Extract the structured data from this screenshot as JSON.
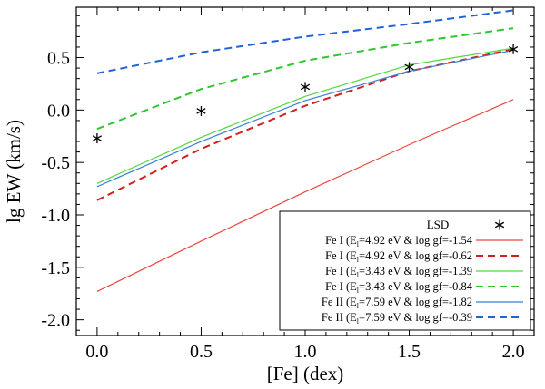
{
  "chart_data": {
    "type": "line",
    "title": "",
    "xlabel": "[Fe] (dex)",
    "ylabel": "lg EW (km/s)",
    "xlim": [
      -0.1,
      2.1
    ],
    "ylim": [
      -2.15,
      0.98
    ],
    "x_ticks": [
      0.0,
      0.5,
      1.0,
      1.5,
      2.0
    ],
    "x_tick_labels": [
      "0.0",
      "0.5",
      "1.0",
      "1.5",
      "2.0"
    ],
    "y_ticks": [
      -2.0,
      -1.5,
      -1.0,
      -0.5,
      0.0,
      0.5
    ],
    "y_tick_labels": [
      "-2.0",
      "-1.5",
      "-1.0",
      "-0.5",
      "0.0",
      "0.5"
    ],
    "x": [
      0.0,
      0.5,
      1.0,
      1.5,
      2.0
    ],
    "lsd": {
      "name": "LSD",
      "marker": "*",
      "values": [
        -0.27,
        -0.01,
        0.22,
        0.41,
        0.58
      ]
    },
    "legend_position": "bottom-right",
    "series": [
      {
        "name": "Fe I (E",
        "sub": "l",
        "name_rest": "=4.92 eV & log gf=-1.54",
        "color": "#e8473c",
        "dash": "solid",
        "values": [
          -1.73,
          -1.25,
          -0.78,
          -0.33,
          0.1
        ]
      },
      {
        "name": "Fe I (E",
        "sub": "l",
        "name_rest": "=4.92 eV & log gf=-0.62",
        "color": "#d21f1f",
        "dash": "dashed",
        "values": [
          -0.86,
          -0.37,
          0.04,
          0.37,
          0.58
        ]
      },
      {
        "name": "Fe I (E",
        "sub": "l",
        "name_rest": "=3.43 eV & log gf=-1.39",
        "color": "#52d63f",
        "dash": "solid",
        "values": [
          -0.7,
          -0.26,
          0.13,
          0.43,
          0.59
        ]
      },
      {
        "name": "Fe I (E",
        "sub": "l",
        "name_rest": "=3.43 eV & log gf=-0.84",
        "color": "#2fc62f",
        "dash": "dashed",
        "values": [
          -0.18,
          0.2,
          0.47,
          0.64,
          0.78
        ]
      },
      {
        "name": "Fe II (E",
        "sub": "l",
        "name_rest": "=7.59 eV & log gf=-1.82",
        "color": "#3b7fd6",
        "dash": "solid",
        "values": [
          -0.73,
          -0.3,
          0.09,
          0.37,
          0.57
        ]
      },
      {
        "name": "Fe II (E",
        "sub": "l",
        "name_rest": "=7.59 eV & log gf=-0.39",
        "color": "#1f63d6",
        "dash": "dashed",
        "values": [
          0.35,
          0.55,
          0.7,
          0.82,
          0.95
        ]
      }
    ]
  }
}
